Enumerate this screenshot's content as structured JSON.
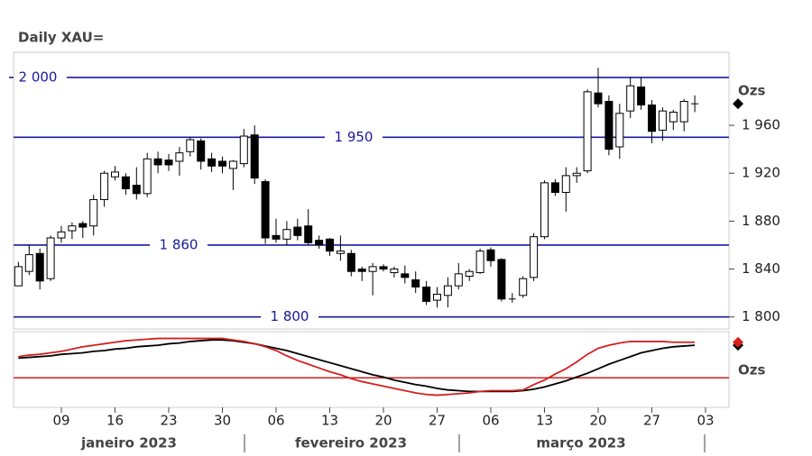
{
  "chart_data": {
    "type": "candlestick",
    "title": "Daily XAU=",
    "unit_label": "Ozs",
    "categories": [
      null,
      null,
      null,
      null,
      "09",
      null,
      null,
      null,
      null,
      "16",
      null,
      null,
      null,
      null,
      "23",
      null,
      null,
      null,
      null,
      "30",
      null,
      null,
      null,
      null,
      "06",
      null,
      null,
      null,
      null,
      "13",
      null,
      null,
      null,
      null,
      "20",
      null,
      null,
      null,
      null,
      "27",
      null,
      null,
      null,
      null,
      "06",
      null,
      null,
      null,
      null,
      "13",
      null,
      null,
      null,
      null,
      "20",
      null,
      null,
      null,
      null,
      "27",
      null,
      null,
      null,
      null,
      "03"
    ],
    "months": [
      "janeiro 2023",
      "fevereiro 2023",
      "março 2023"
    ],
    "open": [
      1826,
      1838,
      1853,
      1832,
      1866,
      1872,
      1878,
      1876,
      1898,
      1917,
      1917,
      1910,
      1903,
      1932,
      1931,
      1930,
      1938,
      1947,
      1932,
      1930,
      1924,
      1928,
      1952,
      1913,
      1868,
      1865,
      1875,
      1876,
      1864,
      1865,
      1853,
      1853,
      1840,
      1838,
      1842,
      1837,
      1836,
      1831,
      1825,
      1814,
      1818,
      1826,
      1834,
      1837,
      1856,
      1848,
      1816,
      1818,
      1833,
      1867,
      1912,
      1904,
      1918,
      1922,
      1987,
      1980,
      1942,
      1972,
      1992,
      1977,
      1956,
      1963,
      1963,
      1977,
      null
    ],
    "high": [
      1846,
      1860,
      1857,
      1868,
      1876,
      1879,
      1880,
      1902,
      1922,
      1926,
      1920,
      1925,
      1937,
      1938,
      1936,
      1942,
      1950,
      1949,
      1937,
      1934,
      1931,
      1957,
      1960,
      1915,
      1882,
      1880,
      1882,
      1890,
      1868,
      1866,
      1868,
      1856,
      1842,
      1845,
      1844,
      1842,
      1843,
      1838,
      1830,
      1825,
      1833,
      1845,
      1840,
      1857,
      1858,
      1849,
      1820,
      1834,
      1870,
      1914,
      1915,
      1925,
      1925,
      1990,
      2008,
      1985,
      1978,
      2000,
      2000,
      1981,
      1975,
      1973,
      1982,
      1985,
      null
    ],
    "low": [
      1826,
      1835,
      1823,
      1830,
      1862,
      1865,
      1866,
      1868,
      1892,
      1914,
      1902,
      1898,
      1900,
      1920,
      1922,
      1918,
      1934,
      1923,
      1921,
      1920,
      1906,
      1925,
      1911,
      1861,
      1862,
      1860,
      1864,
      1860,
      1857,
      1851,
      1847,
      1834,
      1830,
      1818,
      1838,
      1833,
      1828,
      1820,
      1810,
      1808,
      1808,
      1823,
      1830,
      1836,
      1842,
      1813,
      1812,
      1816,
      1830,
      1865,
      1901,
      1888,
      1912,
      1920,
      1975,
      1935,
      1932,
      1966,
      1973,
      1945,
      1947,
      1956,
      1955,
      1971,
      null
    ],
    "close": [
      1842,
      1852,
      1830,
      1866,
      1871,
      1876,
      1875,
      1898,
      1920,
      1921,
      1907,
      1903,
      1932,
      1927,
      1927,
      1937,
      1948,
      1930,
      1926,
      1926,
      1930,
      1951,
      1916,
      1866,
      1865,
      1873,
      1868,
      1862,
      1860,
      1855,
      1855,
      1838,
      1838,
      1842,
      1840,
      1840,
      1833,
      1825,
      1813,
      1819,
      1826,
      1836,
      1838,
      1855,
      1847,
      1815,
      1815,
      1832,
      1867,
      1912,
      1904,
      1918,
      1920,
      1988,
      1978,
      1940,
      1970,
      1993,
      1977,
      1955,
      1972,
      1971,
      1980,
      1978,
      null
    ],
    "up_color": "#ffffff",
    "down_color": "#000000",
    "ylim": [
      1790,
      2021
    ],
    "yticks": [
      {
        "value": 1800,
        "label": "1 800"
      },
      {
        "value": 1840,
        "label": "1 840"
      },
      {
        "value": 1880,
        "label": "1 880"
      },
      {
        "value": 1920,
        "label": "1 920"
      },
      {
        "value": 1960,
        "label": "1 960"
      }
    ],
    "hlines": [
      {
        "value": 2000,
        "label": "2 000"
      },
      {
        "value": 1950,
        "label": "1 950"
      },
      {
        "value": 1860,
        "label": "1 860"
      },
      {
        "value": 1800,
        "label": "1 800"
      }
    ],
    "hline_color": "#1a1aa0",
    "indicator": {
      "unit_label": "Ozs",
      "ylim": [
        0,
        100
      ],
      "reference_line": 39,
      "reference_color": "#d42020",
      "series": [
        {
          "color": "#000000",
          "values": [
            65,
            66,
            67,
            68,
            70,
            71,
            72,
            74,
            75,
            77,
            78,
            80,
            81,
            82,
            84,
            85,
            87,
            88,
            89,
            89,
            88,
            86,
            84,
            81,
            78,
            75,
            71,
            67,
            63,
            59,
            55,
            51,
            47,
            43,
            40,
            36,
            33,
            30,
            28,
            25,
            23,
            22,
            21,
            21,
            21,
            21,
            21,
            22,
            24,
            27,
            31,
            35,
            40,
            45,
            51,
            57,
            62,
            67,
            72,
            75,
            78,
            80,
            81,
            82,
            null
          ]
        },
        {
          "color": "#d42020",
          "values": [
            67,
            69,
            70,
            72,
            74,
            77,
            80,
            82,
            84,
            86,
            88,
            89,
            90,
            91,
            91,
            91,
            91,
            91,
            91,
            91,
            89,
            87,
            84,
            80,
            75,
            68,
            62,
            57,
            52,
            47,
            43,
            38,
            34,
            31,
            28,
            25,
            22,
            19,
            17,
            16,
            17,
            18,
            19,
            21,
            22,
            22,
            22,
            23,
            30,
            36,
            44,
            51,
            60,
            70,
            78,
            82,
            85,
            87,
            87,
            87,
            87,
            86,
            86,
            86,
            null
          ]
        }
      ]
    }
  }
}
